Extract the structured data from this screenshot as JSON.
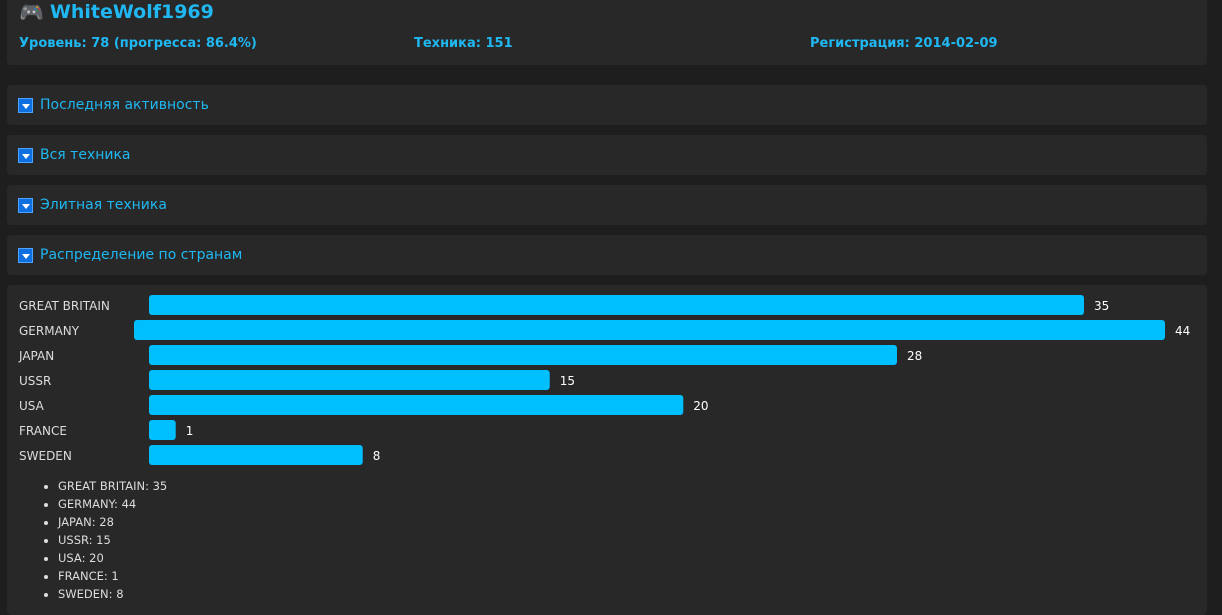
{
  "profile": {
    "icon": "gamepad-icon",
    "username": "WhiteWolf1969",
    "level": "Уровень: 78 (прогресса: 86.4%)",
    "vehicles": "Техника: 151",
    "registration": "Регистрация: 2014-02-09"
  },
  "sections": [
    {
      "label": "Последняя активность"
    },
    {
      "label": "Вся техника"
    },
    {
      "label": "Элитная техника"
    },
    {
      "label": "Распределение по странам"
    }
  ],
  "chart_data": {
    "type": "bar",
    "orientation": "horizontal",
    "categories": [
      "GREAT BRITAIN",
      "GERMANY",
      "JAPAN",
      "USSR",
      "USA",
      "FRANCE",
      "SWEDEN"
    ],
    "values": [
      35,
      44,
      28,
      15,
      20,
      1,
      8
    ],
    "bar_color": "#00bfff",
    "data_labels": true
  },
  "legend_items": [
    "GREAT BRITAIN: 35",
    "GERMANY: 44",
    "JAPAN: 28",
    "USSR: 15",
    "USA: 20",
    "FRANCE: 1",
    "SWEDEN: 8"
  ]
}
